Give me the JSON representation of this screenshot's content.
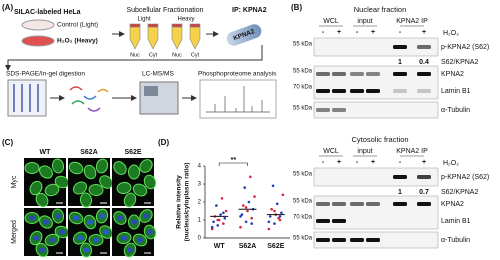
{
  "panels": {
    "a": {
      "label": "(A)",
      "silac": "SILAC-labeled HeLa",
      "control": "Control (Light)",
      "h2o2": "H₂O₂ (Heavy)",
      "fractionation": "Subcellular Fractionation",
      "light": "Light",
      "heavy": "Heavy",
      "tubes": [
        "Nuc",
        "Cyt",
        "Nuc",
        "Cyt"
      ],
      "ip": "IP: KPNA2",
      "protein": "KPNA2",
      "steps": [
        "SDS-PAGE/In-gel digestion",
        "LC-MS/MS",
        "Phosphoproteome analysis"
      ]
    },
    "b": {
      "label": "(B)",
      "blots": [
        {
          "title": "Nuclear fraction",
          "groups": [
            "WCL",
            "input",
            "KPNA2 IP"
          ],
          "signs": [
            "-",
            "+",
            "-",
            "+",
            "-",
            "+"
          ],
          "treatment": "H₂O₂",
          "rows": [
            "p-KPNA2 (S62)",
            "S62/KPNA2",
            "KPNA2",
            "Lamin B1",
            "α-Tubulin"
          ],
          "markers": [
            "55 kDa",
            "55 kDa",
            "70 kDa",
            "55 kDa"
          ],
          "ratios": [
            1,
            0.4
          ]
        },
        {
          "title": "Cytosolic fraction",
          "groups": [
            "WCL",
            "input",
            "KPNA2 IP"
          ],
          "signs": [
            "-",
            "+",
            "-",
            "+",
            "-",
            "+"
          ],
          "treatment": "H₂O₂",
          "rows": [
            "p-KPNA2 (S62)",
            "S62/KPNA2",
            "KPNA2",
            "Lamin B1",
            "α-Tubulin"
          ],
          "markers": [
            "55 kDa",
            "55 kDa",
            "70 kDa",
            "55 kDa"
          ],
          "ratios": [
            1,
            0.7
          ]
        }
      ]
    },
    "c": {
      "label": "(C)",
      "columns": [
        "WT",
        "S62A",
        "S62E"
      ],
      "rows": [
        "Myc",
        "Merged"
      ]
    }
  },
  "chart_data": {
    "type": "dotplot",
    "label": "(D)",
    "ylabel": [
      "Relative intensity",
      "(nucleus/cytoplasm ratio)"
    ],
    "annotation": "**",
    "categories": [
      "WT",
      "S62A",
      "S62E"
    ],
    "ylim": [
      0,
      4
    ],
    "yticks": [
      0,
      1,
      2,
      3,
      4
    ],
    "colors": [
      "#d7263d",
      "#1f3fbf"
    ],
    "points": [
      [
        0.5,
        0.7,
        0.8,
        0.9,
        1.0,
        1.1,
        1.2,
        1.3,
        1.5,
        1.8,
        2.2,
        0.6,
        1.0,
        1.4
      ],
      [
        0.6,
        0.9,
        1.1,
        1.3,
        1.5,
        1.6,
        1.8,
        2.0,
        2.3,
        2.8,
        3.4,
        1.2,
        1.7,
        0.8
      ],
      [
        0.5,
        0.8,
        1.0,
        1.2,
        1.3,
        1.4,
        1.6,
        1.9,
        2.4,
        2.9,
        1.1,
        0.9,
        1.5,
        1.2
      ]
    ],
    "means": [
      1.2,
      1.6,
      1.3
    ]
  }
}
